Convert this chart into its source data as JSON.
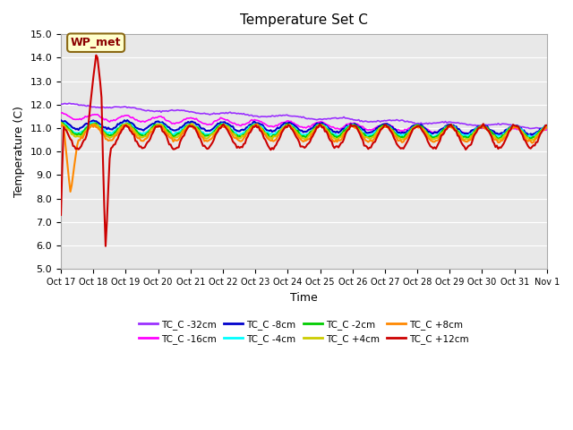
{
  "title": "Temperature Set C",
  "xlabel": "Time",
  "ylabel": "Temperature (C)",
  "ylim": [
    5.0,
    15.0
  ],
  "yticks": [
    5.0,
    6.0,
    7.0,
    8.0,
    9.0,
    10.0,
    11.0,
    12.0,
    13.0,
    14.0,
    15.0
  ],
  "xtick_labels": [
    "Oct 17",
    "Oct 18",
    "Oct 19",
    "Oct 20",
    "Oct 21",
    "Oct 22",
    "Oct 23",
    "Oct 24",
    "Oct 25",
    "Oct 26",
    "Oct 27",
    "Oct 28",
    "Oct 29",
    "Oct 30",
    "Oct 31",
    "Nov 1"
  ],
  "background_color": "#e8e8e8",
  "series": [
    {
      "label": "TC_C -32cm",
      "color": "#9b30ff"
    },
    {
      "label": "TC_C -16cm",
      "color": "#ff00ff"
    },
    {
      "label": "TC_C -8cm",
      "color": "#0000cc"
    },
    {
      "label": "TC_C -4cm",
      "color": "#00ffff"
    },
    {
      "label": "TC_C -2cm",
      "color": "#00cc00"
    },
    {
      "label": "TC_C +4cm",
      "color": "#cccc00"
    },
    {
      "label": "TC_C +8cm",
      "color": "#ff8800"
    },
    {
      "label": "TC_C +12cm",
      "color": "#cc0000"
    }
  ],
  "wp_met_label": "WP_met",
  "wp_met_bg": "#ffffcc",
  "wp_met_border": "#8b6914",
  "n_days": 15,
  "pts_per_day": 24
}
